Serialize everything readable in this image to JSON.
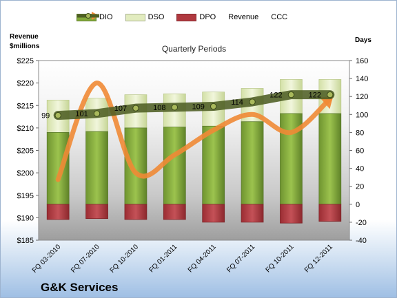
{
  "chart_data": {
    "type": "bar",
    "title": "Quarterly Periods",
    "company": "G&K Services",
    "left_axis_title": [
      "Revenue",
      "$millions"
    ],
    "right_axis_title": "Days",
    "categories": [
      "FQ 03-2010",
      "FQ 07-2010",
      "FQ 10-2010",
      "FQ 01-2011",
      "FQ 04-2011",
      "FQ 07-2011",
      "FQ 10-2011",
      "FQ 12-2011"
    ],
    "left_axis": {
      "min": 185,
      "max": 225,
      "step": 5,
      "ticks": [
        "$185",
        "$190",
        "$195",
        "$200",
        "$205",
        "$210",
        "$215",
        "$220",
        "$225"
      ]
    },
    "right_axis": {
      "min": -40,
      "max": 160,
      "step": 20,
      "ticks": [
        "-40",
        "-20",
        "0",
        "20",
        "40",
        "60",
        "80",
        "100",
        "120",
        "140",
        "160"
      ]
    },
    "series": [
      {
        "name": "DIO",
        "axis": "right",
        "kind": "stacked-bar",
        "values": [
          80,
          81,
          85,
          86,
          87,
          92,
          101,
          101
        ]
      },
      {
        "name": "DSO",
        "axis": "right",
        "kind": "stacked-bar",
        "values": [
          36,
          37,
          37,
          37,
          38,
          37,
          38,
          38
        ]
      },
      {
        "name": "DPO",
        "axis": "right",
        "kind": "negative-bar",
        "values": [
          -17,
          -16,
          -17,
          -17,
          -20,
          -20,
          -21,
          -19
        ]
      },
      {
        "name": "Revenue",
        "axis": "left",
        "kind": "smooth-line",
        "values": [
          198.5,
          220,
          200,
          204,
          209.5,
          213,
          209,
          216.5
        ]
      },
      {
        "name": "CCC",
        "axis": "right",
        "kind": "line-markers",
        "values": [
          99,
          101,
          107,
          108,
          109,
          114,
          122,
          122
        ]
      }
    ],
    "ccc_labels": [
      "99",
      "101",
      "107",
      "108",
      "109",
      "114",
      "122",
      "122"
    ],
    "colors": {
      "DIO": "#82a83a",
      "DSO": "#dfeab7",
      "DPO": "#b0393f",
      "Revenue": "#f08a35",
      "CCC": "#4e5f24"
    },
    "grid": false,
    "legend_position": "top"
  },
  "legend": [
    {
      "name": "DIO",
      "color": "#82a83a",
      "kind": "box"
    },
    {
      "name": "DSO",
      "color": "#e2ecbf",
      "kind": "box"
    },
    {
      "name": "DPO",
      "color": "#b0393f",
      "kind": "box"
    },
    {
      "name": "Revenue",
      "color": "#f08a35",
      "kind": "arrow"
    },
    {
      "name": "CCC",
      "color": "#4e5f24",
      "kind": "line-dot"
    }
  ]
}
